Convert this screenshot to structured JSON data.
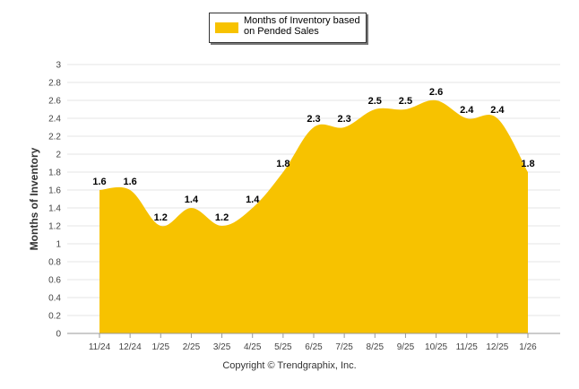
{
  "chart_data": {
    "type": "area",
    "title": "",
    "ylabel": "Months of Inventory",
    "xlabel": "",
    "categories": [
      "11/24",
      "12/24",
      "1/25",
      "2/25",
      "3/25",
      "4/25",
      "5/25",
      "6/25",
      "7/25",
      "8/25",
      "9/25",
      "10/25",
      "11/25",
      "12/25",
      "1/26"
    ],
    "series": [
      {
        "name": "Months of Inventory based on Pended Sales",
        "values": [
          1.6,
          1.6,
          1.2,
          1.4,
          1.2,
          1.4,
          1.8,
          2.3,
          2.3,
          2.5,
          2.5,
          2.6,
          2.4,
          2.4,
          1.8
        ],
        "color": "#f7c200"
      }
    ],
    "ylim": [
      0,
      3
    ],
    "yticks": [
      "0",
      "0.2",
      "0.4",
      "0.6",
      "0.8",
      "1",
      "1.2",
      "1.4",
      "1.6",
      "1.8",
      "2",
      "2.2",
      "2.4",
      "2.6",
      "2.8",
      "3"
    ],
    "grid": true,
    "legend": "top-center"
  },
  "legend_label": "Months of Inventory based on Pended Sales",
  "copyright": "Copyright © Trendgraphix, Inc."
}
